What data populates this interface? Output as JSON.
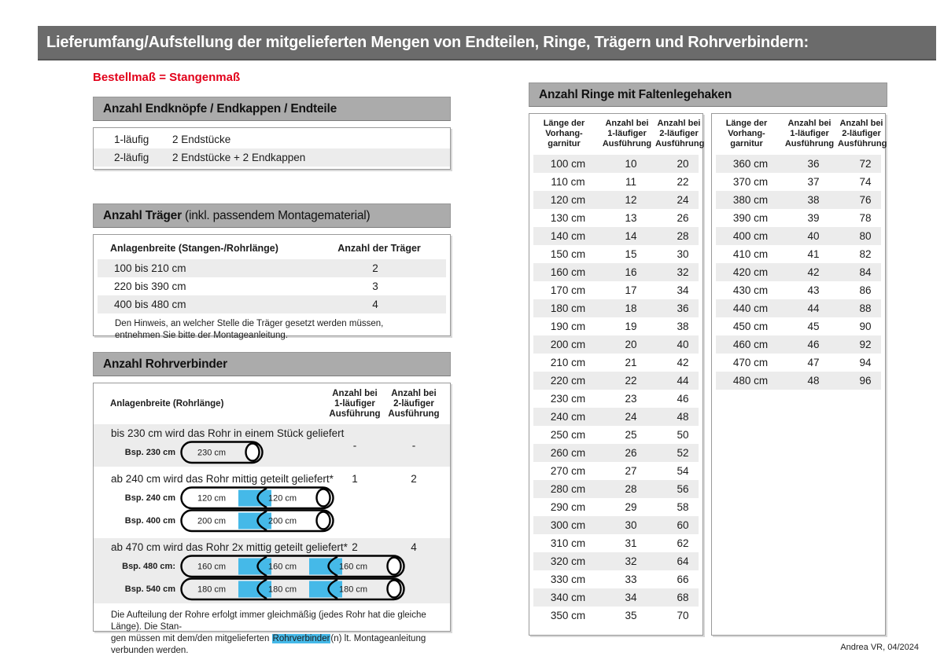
{
  "banner": {
    "title": "Lieferumfang/Aufstellung der mitgelieferten Mengen von Endteilen, Ringe, Trägern und Rohrverbindern:"
  },
  "subtitle": "Bestellmaß = Stangenmaß",
  "end_parts": {
    "header": "Anzahl Endknöpfe / Endkappen / Endteile",
    "rows": [
      {
        "type": "1-läufig",
        "content": "2 Endstücke"
      },
      {
        "type": "2-läufig",
        "content": "2 Endstücke + 2 Endkappen"
      }
    ]
  },
  "traeger": {
    "header_bold": "Anzahl Träger",
    "header_note": " (inkl. passendem Montagematerial)",
    "col_width": "Anlagenbreite (Stangen-/Rohrlänge)",
    "col_count": "Anzahl der Träger",
    "rows": [
      {
        "range": "100 bis 210 cm",
        "count": "2"
      },
      {
        "range": "220 bis 390 cm",
        "count": "3"
      },
      {
        "range": "400 bis 480 cm",
        "count": "4"
      }
    ],
    "note": "Den Hinweis, an welcher Stelle die Träger gesetzt werden müssen, entnehmen Sie bitte der Montageanleitung."
  },
  "rohrverbinder": {
    "header": "Anzahl Rohrverbinder",
    "col_label": "Anlagenbreite (Rohrlänge)",
    "col_one_lines": [
      "Anzahl bei",
      "1-läufiger",
      "Ausführung"
    ],
    "col_two_lines": [
      "Anzahl bei",
      "2-läufiger",
      "Ausführung"
    ],
    "rows": [
      {
        "text": "bis 230 cm wird das Rohr in einem Stück geliefert",
        "one": "-",
        "two": "-",
        "tubes": [
          {
            "label": "Bsp. 230 cm",
            "segments": [
              "230 cm"
            ]
          }
        ]
      },
      {
        "text": "ab 240 cm wird das Rohr mittig geteilt geliefert*",
        "one": "1",
        "two": "2",
        "tubes": [
          {
            "label": "Bsp. 240 cm",
            "segments": [
              "120 cm",
              "120 cm"
            ]
          },
          {
            "label": "Bsp. 400 cm",
            "segments": [
              "200 cm",
              "200 cm"
            ]
          }
        ]
      },
      {
        "text": "ab 470 cm wird das Rohr 2x mittig geteilt geliefert*",
        "one": "2",
        "two": "4",
        "tubes": [
          {
            "label": "Bsp. 480 cm:",
            "segments": [
              "160 cm",
              "160 cm",
              "160 cm"
            ]
          },
          {
            "label": "Bsp. 540 cm",
            "segments": [
              "180 cm",
              "180 cm",
              "180 cm"
            ]
          }
        ]
      }
    ],
    "note_line1": "Die Aufteilung der Rohre erfolgt immer gleichmäßig (jedes Rohr hat die gleiche Länge). Die Stan-",
    "note_line2_pre": "gen müssen mit dem/den mitgelieferten ",
    "note_highlight": "Rohrverbinder",
    "note_line2_post": "(n) lt. Montageanleitung verbunden werden."
  },
  "rings": {
    "header": "Anzahl Ringe mit Faltenlegehaken",
    "col_length_lines": [
      "Länge der",
      "Vorhang-",
      "garnitur"
    ],
    "col_one_lines": [
      "Anzahl bei",
      "1-läufiger",
      "Ausführung"
    ],
    "col_two_lines": [
      "Anzahl bei",
      "2-läufiger",
      "Ausführung"
    ],
    "left_rows": [
      [
        "100 cm",
        "10",
        "20"
      ],
      [
        "110 cm",
        "11",
        "22"
      ],
      [
        "120 cm",
        "12",
        "24"
      ],
      [
        "130 cm",
        "13",
        "26"
      ],
      [
        "140 cm",
        "14",
        "28"
      ],
      [
        "150 cm",
        "15",
        "30"
      ],
      [
        "160 cm",
        "16",
        "32"
      ],
      [
        "170 cm",
        "17",
        "34"
      ],
      [
        "180 cm",
        "18",
        "36"
      ],
      [
        "190 cm",
        "19",
        "38"
      ],
      [
        "200 cm",
        "20",
        "40"
      ],
      [
        "210 cm",
        "21",
        "42"
      ],
      [
        "220 cm",
        "22",
        "44"
      ],
      [
        "230 cm",
        "23",
        "46"
      ],
      [
        "240 cm",
        "24",
        "48"
      ],
      [
        "250 cm",
        "25",
        "50"
      ],
      [
        "260 cm",
        "26",
        "52"
      ],
      [
        "270 cm",
        "27",
        "54"
      ],
      [
        "280 cm",
        "28",
        "56"
      ],
      [
        "290 cm",
        "29",
        "58"
      ],
      [
        "300 cm",
        "30",
        "60"
      ],
      [
        "310 cm",
        "31",
        "62"
      ],
      [
        "320 cm",
        "32",
        "64"
      ],
      [
        "330 cm",
        "33",
        "66"
      ],
      [
        "340 cm",
        "34",
        "68"
      ],
      [
        "350 cm",
        "35",
        "70"
      ]
    ],
    "right_rows": [
      [
        "360 cm",
        "36",
        "72"
      ],
      [
        "370 cm",
        "37",
        "74"
      ],
      [
        "380 cm",
        "38",
        "76"
      ],
      [
        "390 cm",
        "39",
        "78"
      ],
      [
        "400 cm",
        "40",
        "80"
      ],
      [
        "410 cm",
        "41",
        "82"
      ],
      [
        "420 cm",
        "42",
        "84"
      ],
      [
        "430 cm",
        "43",
        "86"
      ],
      [
        "440 cm",
        "44",
        "88"
      ],
      [
        "450 cm",
        "45",
        "90"
      ],
      [
        "460 cm",
        "46",
        "92"
      ],
      [
        "470 cm",
        "47",
        "94"
      ],
      [
        "480 cm",
        "48",
        "96"
      ]
    ]
  },
  "footer": "Andrea VR, 04/2024",
  "colors": {
    "accent_red": "#e2001a",
    "highlight_blue": "#45b9e8",
    "banner_gray": "#6b6b6b",
    "bar_gray": "#ababab",
    "stripe_gray": "#ececec"
  }
}
